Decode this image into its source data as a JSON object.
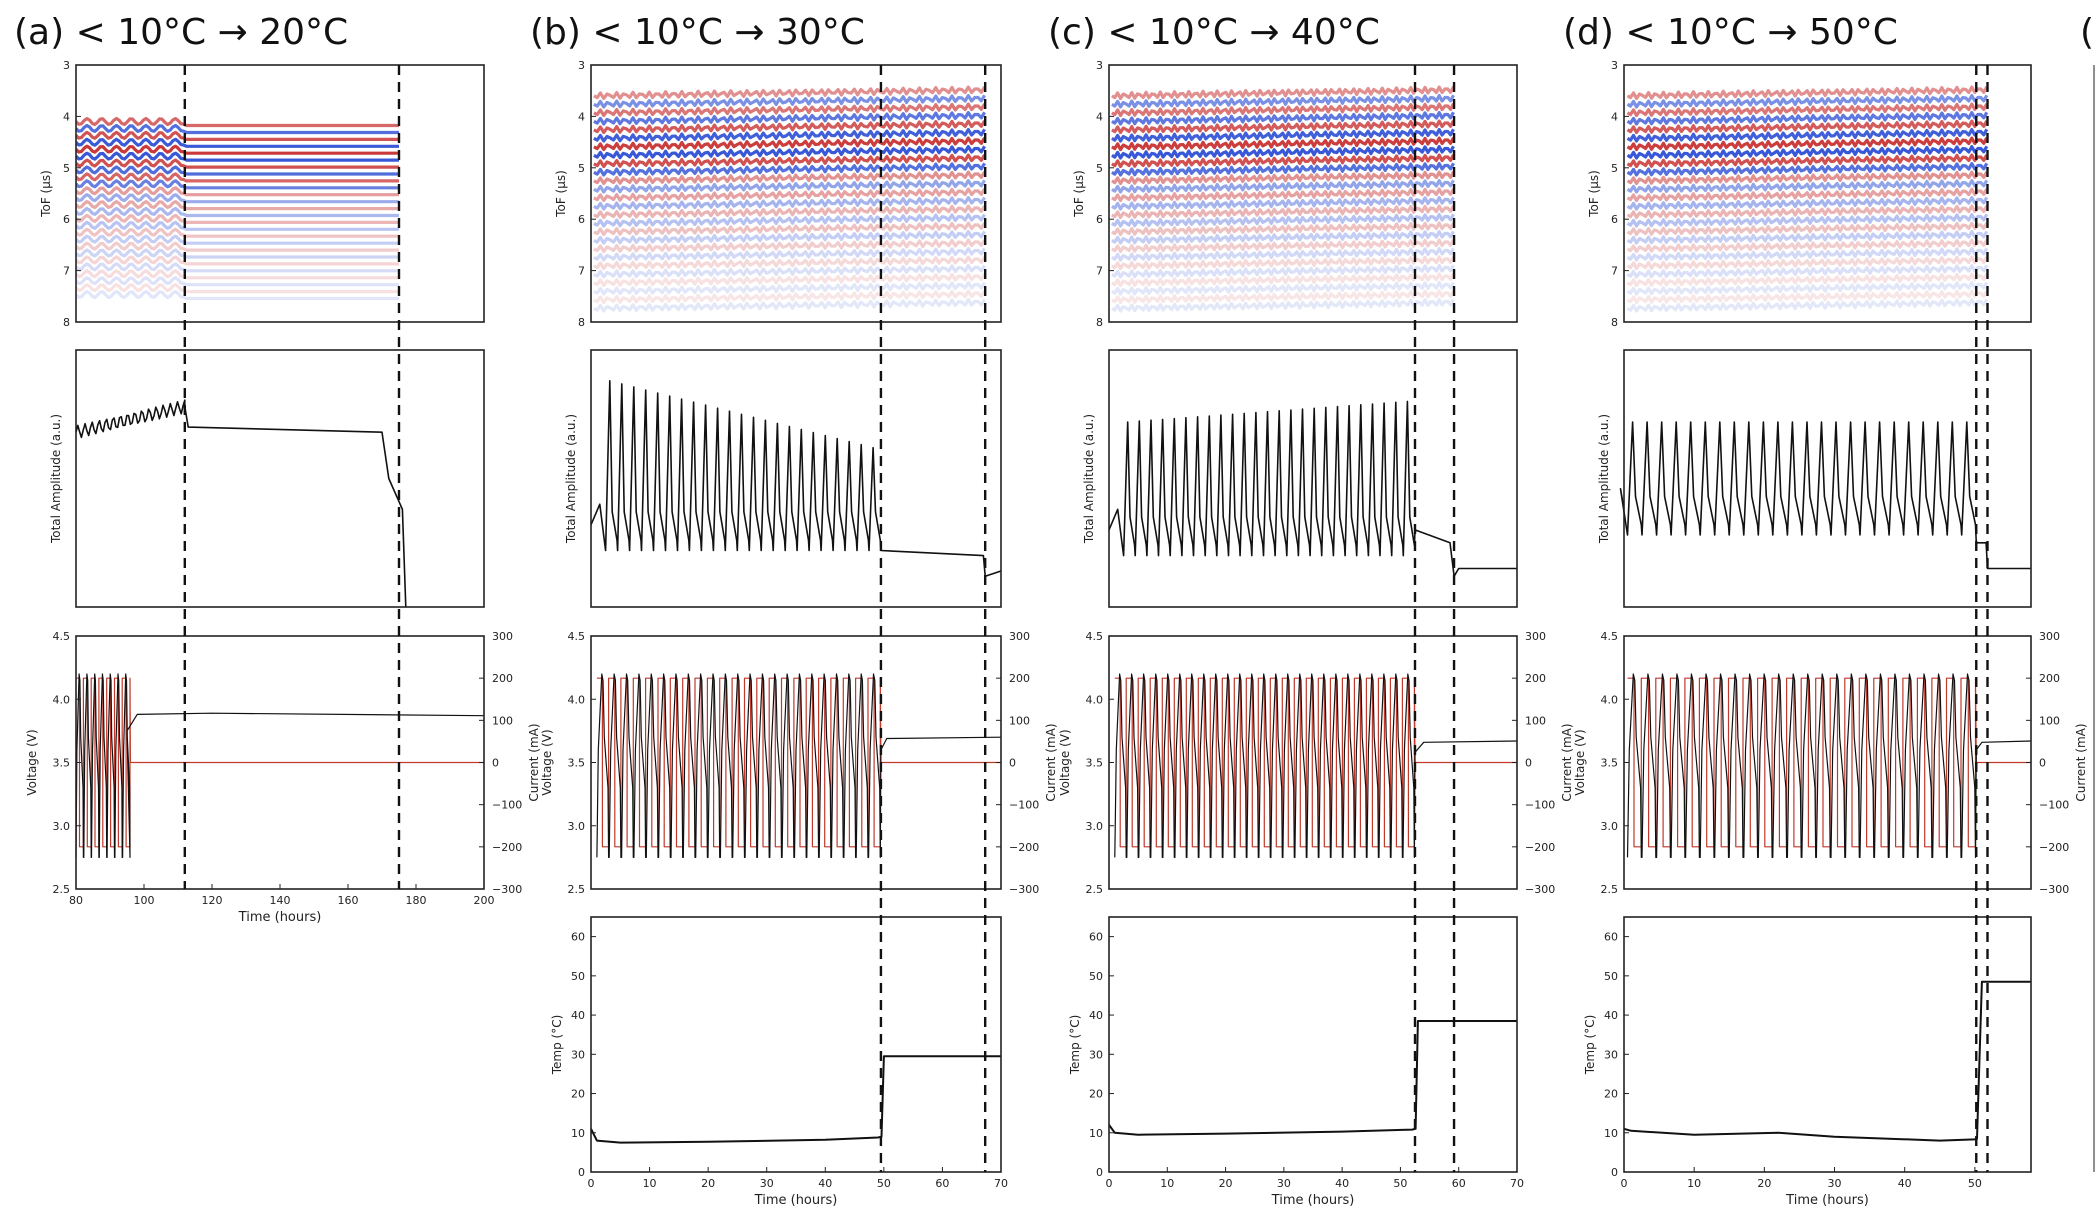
{
  "figure": {
    "panel_titles": [
      "(a) < 10°C → 20°C",
      "(b) < 10°C → 30°C",
      "(c) < 10°C → 40°C",
      "(d) < 10°C → 50°C",
      "(e"
    ]
  },
  "colors": {
    "voltage": "#111111",
    "current": "#c0392b",
    "tof_red": "#c62828",
    "tof_blue": "#1a3fd1",
    "dashed": "#111111"
  },
  "chart_data": [
    {
      "panel": "a",
      "title": "(a) < 10°C → 20°C",
      "type": "line",
      "xlabel": "Time (hours)",
      "xlim": [
        80,
        200
      ],
      "xticks": [
        "80",
        "100",
        "120",
        "140",
        "160",
        "180",
        "200"
      ],
      "dashed_lines_x": [
        112,
        175
      ],
      "tof": {
        "type": "heatmap",
        "ylabel": "ToF (μs)",
        "yticks": [
          "3",
          "4",
          "5",
          "6",
          "7",
          "8"
        ],
        "ylim": [
          3,
          8
        ]
      },
      "amplitude": {
        "ylabel": "Total Amplitude (a.u.)",
        "x": [
          80,
          95,
          112,
          113,
          170,
          172,
          176,
          177
        ],
        "y": [
          0.68,
          0.71,
          0.78,
          0.7,
          0.68,
          0.5,
          0.38,
          0.0
        ]
      },
      "voltage_current": {
        "ylabel": "Voltage (V)",
        "ylabel_right": "Current (mA)",
        "ylim": [
          2.5,
          4.5
        ],
        "ylim_right": [
          -300,
          300
        ],
        "yticks": [
          "2.5",
          "3.0",
          "3.5",
          "4.0",
          "4.5"
        ],
        "yticks_right": [
          "300",
          "200",
          "100",
          "0",
          "−100",
          "−200",
          "−300"
        ],
        "voltage": {
          "x": [
            95,
            98,
            120,
            200
          ],
          "y": [
            3.75,
            3.88,
            3.89,
            3.87
          ]
        },
        "current": {
          "x": [
            96,
            200
          ],
          "y": [
            0,
            0
          ]
        },
        "cycling": {
          "x_start": 80,
          "x_end": 96,
          "cycles": 7,
          "v_min": 2.75,
          "v_max": 4.2,
          "i_max": 200,
          "i_min": -200
        }
      }
    },
    {
      "panel": "b",
      "title": "(b) < 10°C → 30°C",
      "type": "line",
      "xlabel": "Time (hours)",
      "xlim": [
        0,
        70
      ],
      "xticks": [
        "0",
        "10",
        "20",
        "30",
        "40",
        "50",
        "60",
        "70"
      ],
      "dashed_lines_x": [
        49.5,
        67.3
      ],
      "tof": {
        "type": "heatmap",
        "ylabel": "ToF (μs)",
        "yticks": [
          "3",
          "4",
          "5",
          "6",
          "7",
          "8"
        ],
        "ylim": [
          3,
          8
        ]
      },
      "amplitude": {
        "ylabel": "Total Amplitude (a.u.)",
        "cycles": 23,
        "cycle_start": 2.5,
        "cycle_end": 49.5,
        "peak_start": 0.88,
        "peak_end": 0.62,
        "trough": 0.22,
        "rest": [
          [
            49.5,
            0.22
          ],
          [
            67,
            0.2
          ],
          [
            67.3,
            0.12
          ],
          [
            70,
            0.14
          ]
        ]
      },
      "voltage_current": {
        "ylabel": "Voltage (V)",
        "ylabel_right": "Current (mA)",
        "ylim": [
          2.5,
          4.5
        ],
        "ylim_right": [
          -300,
          300
        ],
        "yticks": [
          "2.5",
          "3.0",
          "3.5",
          "4.0",
          "4.5"
        ],
        "yticks_right": [
          "300",
          "200",
          "100",
          "0",
          "−100",
          "−200",
          "−300"
        ],
        "cycling": {
          "x_start": 1,
          "x_end": 49.5,
          "cycles": 23,
          "v_min": 2.75,
          "v_max": 4.2,
          "i_max": 200,
          "i_min": -200
        },
        "voltage_rest": {
          "x": [
            49.5,
            50.5,
            70
          ],
          "y": [
            3.6,
            3.69,
            3.7
          ]
        },
        "current_rest": {
          "x": [
            49.5,
            70
          ],
          "y": [
            0,
            0
          ]
        }
      },
      "temperature": {
        "ylabel": "Temp (°C)",
        "ylim": [
          0,
          65
        ],
        "yticks": [
          "0",
          "10",
          "20",
          "30",
          "40",
          "50",
          "60"
        ],
        "x": [
          0,
          1,
          5,
          20,
          40,
          49,
          49.6,
          50,
          70
        ],
        "y": [
          11,
          8,
          7.5,
          7.7,
          8.2,
          8.8,
          9,
          29.5,
          29.5
        ]
      }
    },
    {
      "panel": "c",
      "title": "(c) < 10°C → 40°C",
      "type": "line",
      "xlabel": "Time (hours)",
      "xlim": [
        0,
        70
      ],
      "xticks": [
        "0",
        "10",
        "20",
        "30",
        "40",
        "50",
        "60",
        "70"
      ],
      "dashed_lines_x": [
        52.5,
        59.2
      ],
      "tof": {
        "type": "heatmap",
        "ylabel": "ToF (μs)",
        "yticks": [
          "3",
          "4",
          "5",
          "6",
          "7",
          "8"
        ],
        "ylim": [
          3,
          8
        ]
      },
      "amplitude": {
        "ylabel": "Total Amplitude (a.u.)",
        "cycles": 25,
        "cycle_start": 2.5,
        "cycle_end": 52.5,
        "peak_start": 0.72,
        "peak_end": 0.8,
        "trough": 0.2,
        "rest": [
          [
            52.5,
            0.3
          ],
          [
            58.5,
            0.25
          ],
          [
            59.2,
            0.12
          ],
          [
            60,
            0.15
          ],
          [
            70,
            0.15
          ]
        ]
      },
      "voltage_current": {
        "ylabel": "Voltage (V)",
        "ylabel_right": "Current (mA)",
        "ylim": [
          2.5,
          4.5
        ],
        "ylim_right": [
          -300,
          300
        ],
        "yticks": [
          "2.5",
          "3.0",
          "3.5",
          "4.0",
          "4.5"
        ],
        "yticks_right": [
          "300",
          "200",
          "100",
          "0",
          "−100",
          "−200",
          "−300"
        ],
        "cycling": {
          "x_start": 1,
          "x_end": 52.5,
          "cycles": 25,
          "v_min": 2.75,
          "v_max": 4.2,
          "i_max": 200,
          "i_min": -200
        },
        "voltage_rest": {
          "x": [
            52.5,
            54,
            70
          ],
          "y": [
            3.58,
            3.66,
            3.67
          ]
        },
        "current_rest": {
          "x": [
            52.5,
            70
          ],
          "y": [
            0,
            0
          ]
        }
      },
      "temperature": {
        "ylabel": "Temp (°C)",
        "ylim": [
          0,
          65
        ],
        "yticks": [
          "0",
          "10",
          "20",
          "30",
          "40",
          "50",
          "60"
        ],
        "x": [
          0,
          1,
          5,
          20,
          40,
          52,
          52.6,
          53,
          70
        ],
        "y": [
          12,
          10,
          9.5,
          9.8,
          10.3,
          10.8,
          11,
          38.5,
          38.5
        ]
      }
    },
    {
      "panel": "d",
      "title": "(d) < 10°C → 50°C",
      "type": "line",
      "xlabel": "Time (hours)",
      "xlim": [
        0,
        58
      ],
      "xticks": [
        "0",
        "10",
        "20",
        "30",
        "40",
        "50"
      ],
      "dashed_lines_x": [
        50.2,
        51.8
      ],
      "tof": {
        "type": "heatmap",
        "ylabel": "ToF (μs)",
        "yticks": [
          "3",
          "4",
          "5",
          "6",
          "7",
          "8"
        ],
        "ylim": [
          3,
          8
        ]
      },
      "amplitude": {
        "ylabel": "Total Amplitude (a.u.)",
        "cycles": 24,
        "cycle_start": 0.5,
        "cycle_end": 50.2,
        "peak_start": 0.72,
        "peak_end": 0.72,
        "trough": 0.28,
        "rest": [
          [
            50.2,
            0.25
          ],
          [
            51.6,
            0.25
          ],
          [
            51.8,
            0.15
          ],
          [
            58,
            0.15
          ]
        ]
      },
      "voltage_current": {
        "ylabel": "Voltage (V)",
        "ylabel_right": "Current (mA)",
        "ylim": [
          2.5,
          4.5
        ],
        "ylim_right": [
          -300,
          300
        ],
        "yticks": [
          "2.5",
          "3.0",
          "3.5",
          "4.0",
          "4.5"
        ],
        "yticks_right": [
          "300",
          "200",
          "100",
          "0",
          "−100",
          "−200",
          "−300"
        ],
        "cycling": {
          "x_start": 0.5,
          "x_end": 50.2,
          "cycles": 24,
          "v_min": 2.75,
          "v_max": 4.2,
          "i_max": 200,
          "i_min": -200
        },
        "voltage_rest": {
          "x": [
            50.2,
            51,
            58
          ],
          "y": [
            3.6,
            3.66,
            3.67
          ]
        },
        "current_rest": {
          "x": [
            50.2,
            58
          ],
          "y": [
            0,
            0
          ]
        }
      },
      "temperature": {
        "ylabel": "Temp (°C)",
        "ylim": [
          0,
          65
        ],
        "yticks": [
          "0",
          "10",
          "20",
          "30",
          "40",
          "50",
          "60"
        ],
        "x": [
          0,
          1,
          10,
          22,
          30,
          45,
          50,
          50.3,
          51,
          58
        ],
        "y": [
          11,
          10.5,
          9.5,
          10,
          9,
          8,
          8.3,
          8.5,
          48.5,
          48.5
        ]
      }
    }
  ]
}
